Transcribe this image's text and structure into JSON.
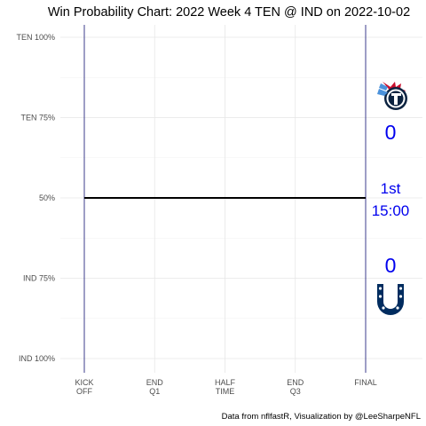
{
  "chart_data": {
    "type": "line",
    "title": "Win Probability Chart: 2022 Week 4 TEN @ IND on 2022-10-02",
    "xlabel": "",
    "ylabel": "",
    "x_ticks": [
      [
        "KICK",
        "OFF"
      ],
      [
        "END",
        "Q1"
      ],
      [
        "HALF",
        "TIME"
      ],
      [
        "END",
        "Q3"
      ],
      [
        "FINAL"
      ]
    ],
    "y_ticks": [
      "TEN 100%",
      "TEN 75%",
      "50%",
      "IND 75%",
      "IND 100%"
    ],
    "y_tick_values": [
      1.0,
      0.75,
      0.5,
      0.25,
      0.0
    ],
    "ylim": [
      0,
      1
    ],
    "xlim": [
      0,
      4
    ],
    "grid": true,
    "series": [
      {
        "x": [
          0,
          4
        ],
        "y": [
          0.5,
          0.5
        ],
        "color": "#000000"
      }
    ],
    "vertical_lines_at": [
      0,
      4
    ],
    "vertical_line_color": "#3c3c8c",
    "annotations": {
      "away_team": "TEN",
      "home_team": "IND",
      "away_score": "0",
      "home_score": "0",
      "quarter": "1st",
      "clock": "15:00"
    },
    "caption": "Data from nflfastR, Visualization by @LeeSharpeNFL",
    "score_color": "#0000ee",
    "logos": [
      "titans-logo",
      "colts-logo"
    ],
    "titans_colors": {
      "navy": "#0c2340",
      "blue": "#4b92db",
      "red": "#c8102e"
    },
    "colts_color": "#002c5f"
  }
}
